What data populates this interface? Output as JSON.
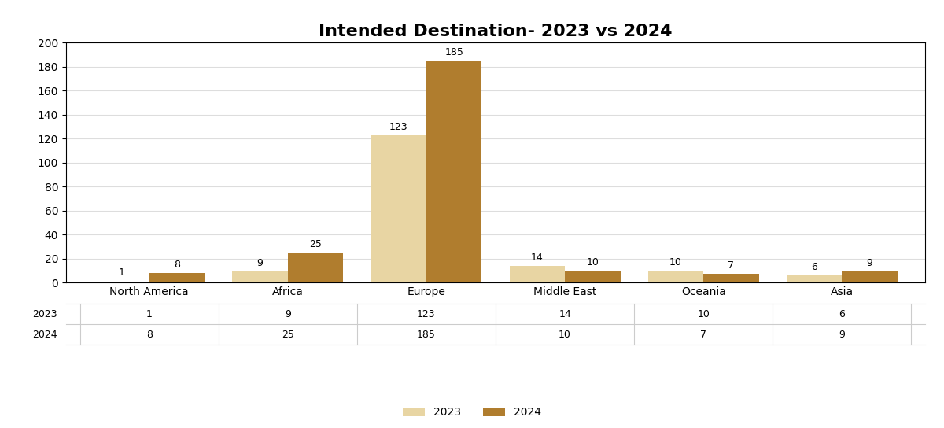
{
  "chart_data": {
    "type": "bar",
    "title": "Intended Destination- 2023 vs 2024",
    "categories": [
      "North America",
      "Africa",
      "Europe",
      "Middle East",
      "Oceania",
      "Asia"
    ],
    "series": [
      {
        "name": "2023",
        "color": "#e8d5a3",
        "values": [
          1,
          9,
          123,
          14,
          10,
          6
        ]
      },
      {
        "name": "2024",
        "color": "#b07d2e",
        "values": [
          8,
          25,
          185,
          10,
          7,
          9
        ]
      }
    ],
    "ylim": [
      0,
      200
    ],
    "yticks": [
      0,
      20,
      40,
      60,
      80,
      100,
      120,
      140,
      160,
      180,
      200
    ],
    "grid": true,
    "legend": "lower center",
    "data_labels": true
  }
}
